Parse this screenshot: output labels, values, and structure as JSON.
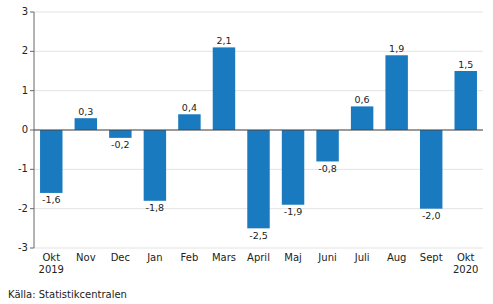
{
  "chart_data": {
    "type": "bar",
    "categories": [
      "Okt\n2019",
      "Nov",
      "Dec",
      "Jan",
      "Feb",
      "Mars",
      "April",
      "Maj",
      "Juni",
      "Juli",
      "Aug",
      "Sept",
      "Okt\n2020"
    ],
    "values": [
      -1.6,
      0.3,
      -0.2,
      -1.8,
      0.4,
      2.1,
      -2.5,
      -1.9,
      -0.8,
      0.6,
      1.9,
      -2.0,
      1.5
    ],
    "value_labels": [
      "-1,6",
      "0,3",
      "-0,2",
      "-1,8",
      "0,4",
      "2,1",
      "-2,5",
      "-1,9",
      "-0,8",
      "0,6",
      "1,9",
      "-2,0",
      "1,5"
    ],
    "data_labels": true,
    "color": "#1a7abf",
    "ylim": [
      -3,
      3
    ],
    "yticks": [
      -3,
      -2,
      -1,
      0,
      1,
      2,
      3
    ],
    "grid": true,
    "annotations": [
      "Källa: Statistikcentralen"
    ]
  }
}
